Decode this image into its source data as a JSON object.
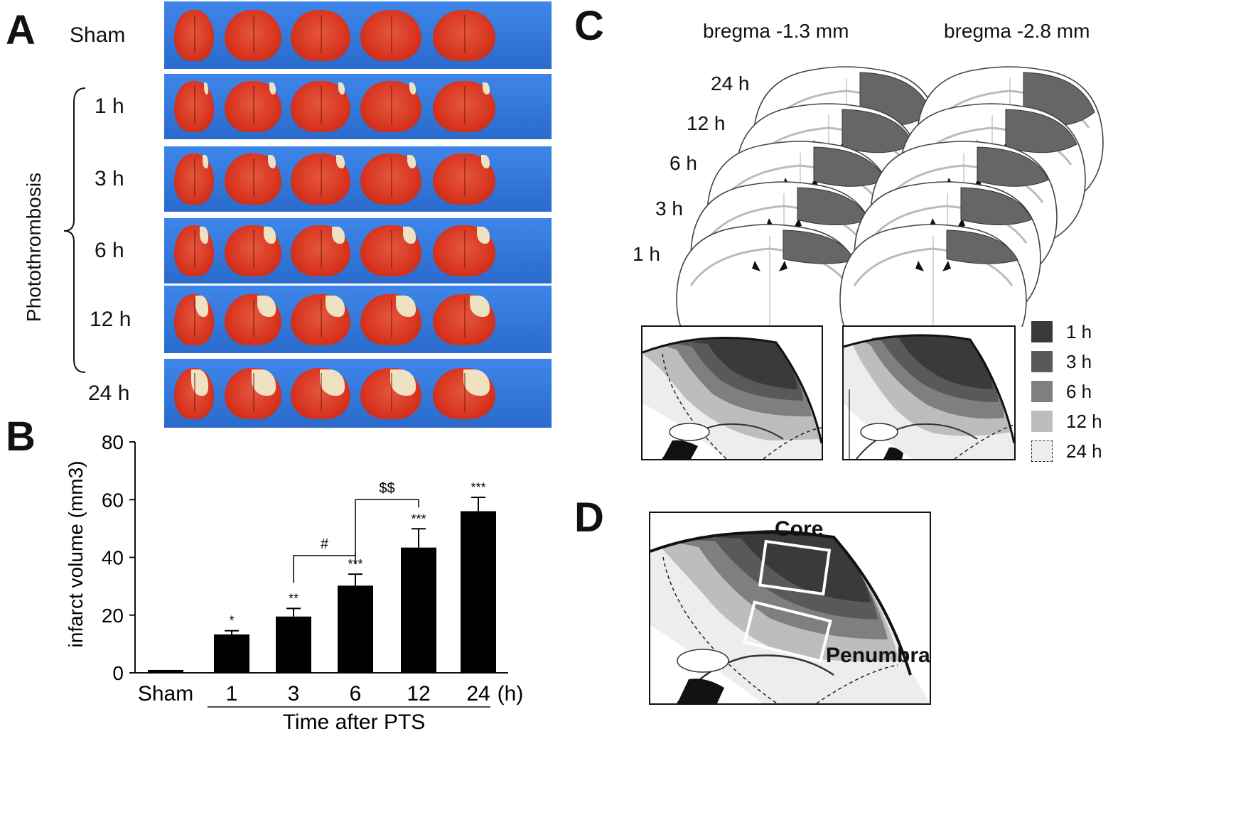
{
  "panels": {
    "a": "A",
    "b": "B",
    "c": "C",
    "d": "D"
  },
  "panel_a": {
    "rows": [
      {
        "label": "Sham",
        "lesion": 0
      },
      {
        "label": "1 h",
        "lesion": 0.15
      },
      {
        "label": "3 h",
        "lesion": 0.2
      },
      {
        "label": "6 h",
        "lesion": 0.3
      },
      {
        "label": "12 h",
        "lesion": 0.45
      },
      {
        "label": "24 h",
        "lesion": 0.6
      }
    ],
    "group_label": "Photothrombosis"
  },
  "chart_data": {
    "type": "bar",
    "categories": [
      "Sham",
      "1",
      "3",
      "6",
      "12",
      "24"
    ],
    "unit_suffix": "(h)",
    "values": [
      1,
      13.3,
      19.5,
      30.2,
      43.4,
      56
    ],
    "errors": [
      0,
      1.3,
      2.8,
      4,
      6.5,
      4.8
    ],
    "significance": [
      "",
      "*",
      "**",
      "***",
      "***",
      "***"
    ],
    "ylabel": "infarct volume (mm3)",
    "xlabel": "Time after PTS",
    "ylim": [
      0,
      80
    ],
    "yticks": [
      0,
      20,
      40,
      60,
      80
    ],
    "brackets": [
      {
        "from": "3",
        "to": "6",
        "label": "#"
      },
      {
        "from": "6",
        "to": "12",
        "label": "$$"
      }
    ]
  },
  "panel_c": {
    "bregma_left": "bregma -1.3 mm",
    "bregma_right": "bregma -2.8 mm",
    "time_labels": [
      "24 h",
      "12 h",
      "6 h",
      "3 h",
      "1 h"
    ],
    "legend": [
      {
        "label": "1 h",
        "color": "#3a3a3a"
      },
      {
        "label": "3 h",
        "color": "#595959"
      },
      {
        "label": "6 h",
        "color": "#7f7f7f"
      },
      {
        "label": "12 h",
        "color": "#bdbdbd"
      },
      {
        "label": "24 h",
        "color": "#ededed"
      }
    ]
  },
  "panel_d": {
    "core": "Core",
    "penumbra": "Penumbra"
  }
}
